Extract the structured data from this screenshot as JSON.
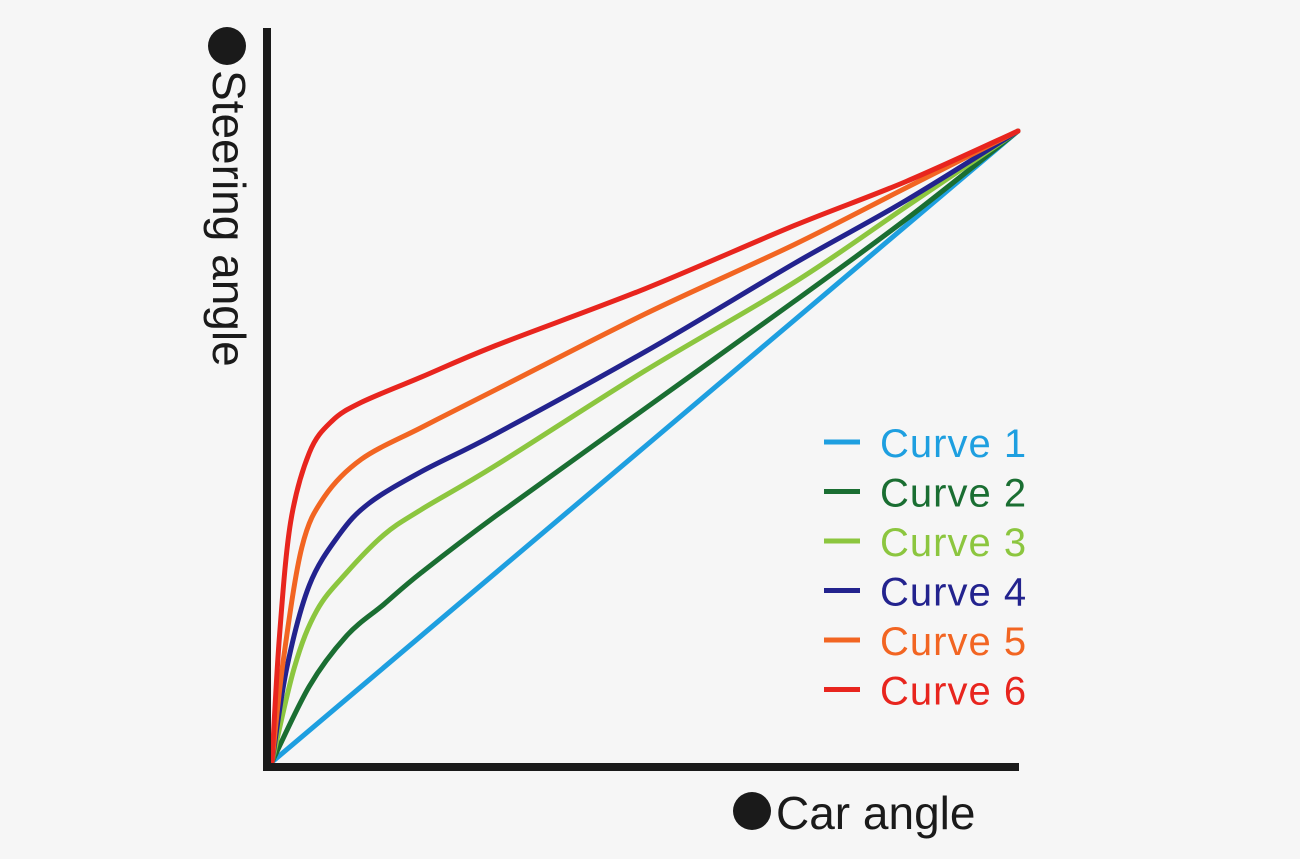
{
  "chart_data": {
    "type": "line",
    "title": "",
    "xlabel": "Car angle",
    "ylabel": "Steering angle",
    "xlim": [
      0,
      1
    ],
    "ylim": [
      0,
      1
    ],
    "grid": false,
    "legend_position": "right",
    "axis_marker": "●",
    "series": [
      {
        "name": "Curve 1",
        "color": "#1e9fe0",
        "x": [
          0,
          0.2,
          0.4,
          0.6,
          0.8,
          1.0
        ],
        "y": [
          0,
          0.2,
          0.4,
          0.6,
          0.8,
          1.0
        ]
      },
      {
        "name": "Curve 2",
        "color": "#1a6e32",
        "x": [
          0,
          0.05,
          0.1,
          0.15,
          0.2,
          0.3,
          0.5,
          0.7,
          0.85,
          1.0
        ],
        "y": [
          0,
          0.12,
          0.2,
          0.25,
          0.3,
          0.39,
          0.56,
          0.73,
          0.86,
          1.0
        ]
      },
      {
        "name": "Curve 3",
        "color": "#8cc63f",
        "x": [
          0,
          0.03,
          0.06,
          0.1,
          0.15,
          0.2,
          0.3,
          0.5,
          0.7,
          0.85,
          1.0
        ],
        "y": [
          0,
          0.15,
          0.24,
          0.3,
          0.36,
          0.4,
          0.47,
          0.62,
          0.76,
          0.88,
          1.0
        ]
      },
      {
        "name": "Curve 4",
        "color": "#23238e",
        "x": [
          0,
          0.02,
          0.05,
          0.09,
          0.13,
          0.2,
          0.3,
          0.5,
          0.7,
          0.85,
          1.0
        ],
        "y": [
          0,
          0.15,
          0.28,
          0.36,
          0.41,
          0.46,
          0.52,
          0.65,
          0.79,
          0.89,
          1.0
        ]
      },
      {
        "name": "Curve 5",
        "color": "#f26522",
        "x": [
          0,
          0.015,
          0.04,
          0.07,
          0.12,
          0.2,
          0.3,
          0.5,
          0.7,
          0.85,
          1.0
        ],
        "y": [
          0,
          0.16,
          0.34,
          0.42,
          0.48,
          0.53,
          0.59,
          0.71,
          0.82,
          0.91,
          1.0
        ]
      },
      {
        "name": "Curve 6",
        "color": "#e8251e",
        "x": [
          0,
          0.01,
          0.025,
          0.05,
          0.08,
          0.12,
          0.2,
          0.3,
          0.5,
          0.7,
          0.85,
          1.0
        ],
        "y": [
          0,
          0.2,
          0.38,
          0.49,
          0.54,
          0.57,
          0.61,
          0.66,
          0.75,
          0.85,
          0.92,
          1.0
        ]
      }
    ]
  }
}
